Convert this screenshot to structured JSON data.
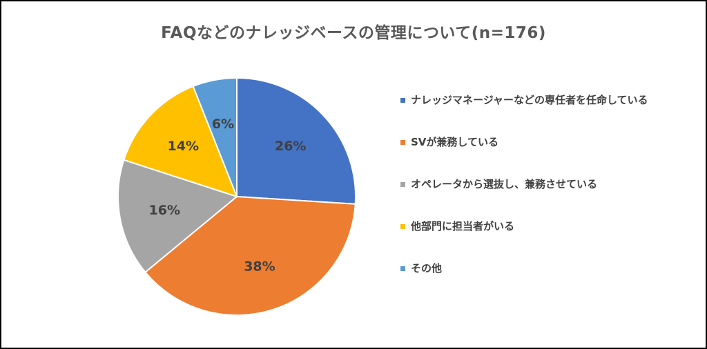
{
  "chart_data": {
    "type": "pie",
    "title": "FAQなどのナレッジベースの管理について(n=176)",
    "legend_position": "right",
    "slices": [
      {
        "label": "ナレッジマネージャーなどの専任者を任命している",
        "value": 26,
        "display": "26%",
        "color": "#4472C4"
      },
      {
        "label": "SVが兼務している",
        "value": 38,
        "display": "38%",
        "color": "#ED7D31"
      },
      {
        "label": "オペレータから選抜し、兼務させている",
        "value": 16,
        "display": "16%",
        "color": "#A5A5A5"
      },
      {
        "label": "他部門に担当者がいる",
        "value": 14,
        "display": "14%",
        "color": "#FFC000"
      },
      {
        "label": "その他",
        "value": 6,
        "display": "6%",
        "color": "#5B9BD5"
      }
    ]
  }
}
